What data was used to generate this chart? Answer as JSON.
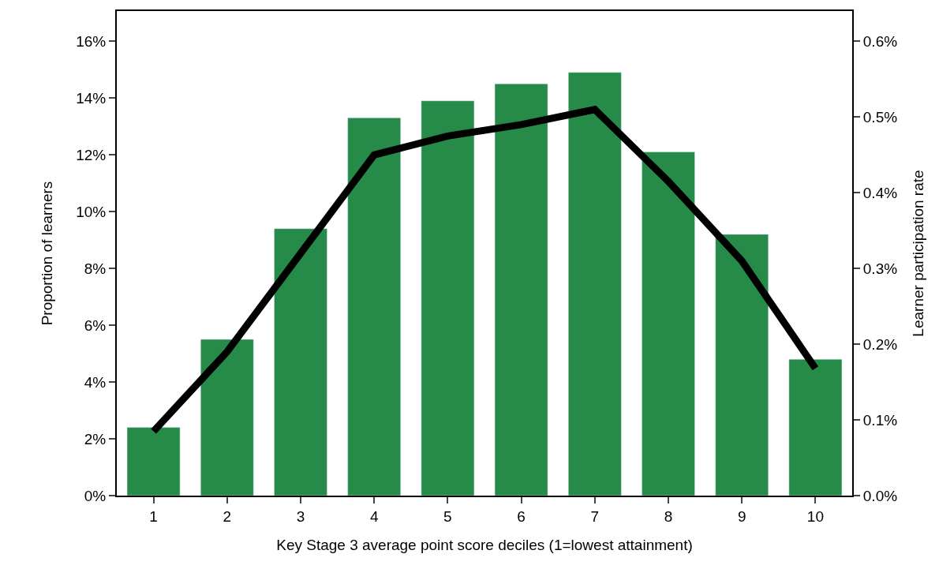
{
  "chart_data": {
    "type": "bar",
    "xlabel": "Key Stage 3 average point score deciles (1=lowest attainment)",
    "ylabel": "Proportion of learners",
    "y2label": "Learner participation rate",
    "categories": [
      "1",
      "2",
      "3",
      "4",
      "5",
      "6",
      "7",
      "8",
      "9",
      "10"
    ],
    "series": [
      {
        "color": "#268a48",
        "values": [
          2.4,
          5.5,
          9.4,
          13.3,
          13.9,
          14.5,
          14.9,
          12.1,
          9.2,
          4.8
        ]
      },
      {
        "type": "line",
        "axis": "y2",
        "color": "#000000",
        "values": [
          0.085,
          0.19,
          0.32,
          0.45,
          0.475,
          0.49,
          0.51,
          0.415,
          0.31,
          0.168
        ]
      }
    ],
    "ylim": [
      0,
      17.06
    ],
    "yticks": [
      {
        "value": 0,
        "label": "0%"
      },
      {
        "value": 2,
        "label": "2%"
      },
      {
        "value": 4,
        "label": "4%"
      },
      {
        "value": 6,
        "label": "6%"
      },
      {
        "value": 8,
        "label": "8%"
      },
      {
        "value": 10,
        "label": "10%"
      },
      {
        "value": 12,
        "label": "12%"
      },
      {
        "value": 14,
        "label": "14%"
      },
      {
        "value": 16,
        "label": "16%"
      }
    ],
    "y2lim": [
      0,
      0.64
    ],
    "y2ticks": [
      {
        "value": 0,
        "label": "0.0%"
      },
      {
        "value": 0.1,
        "label": "0.1%"
      },
      {
        "value": 0.2,
        "label": "0.2%"
      },
      {
        "value": 0.3,
        "label": "0.3%"
      },
      {
        "value": 0.4,
        "label": "0.4%"
      },
      {
        "value": 0.5,
        "label": "0.5%"
      },
      {
        "value": 0.6,
        "label": "0.6%"
      }
    ],
    "marker": "none",
    "line_style": "solid"
  }
}
